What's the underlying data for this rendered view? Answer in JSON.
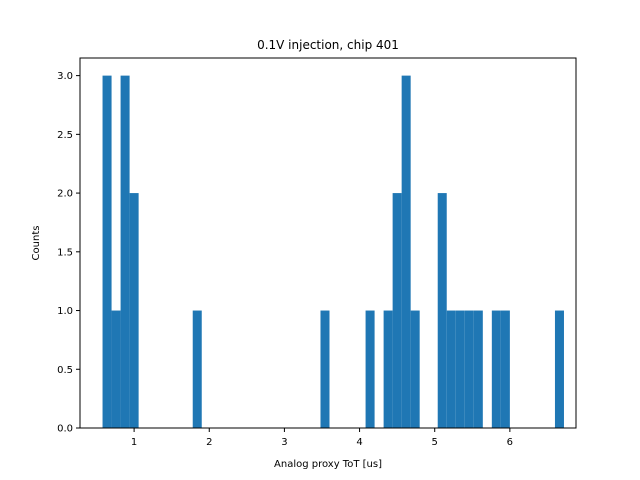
{
  "chart_data": {
    "type": "bar",
    "title": "0.1V injection, chip 401",
    "xlabel": "Analog proxy ToT [us]",
    "ylabel": "Counts",
    "xlim": [
      0.28,
      6.88
    ],
    "ylim": [
      0,
      3.15
    ],
    "xticks": [
      1,
      2,
      3,
      4,
      5,
      6
    ],
    "yticks": [
      0.0,
      0.5,
      1.0,
      1.5,
      2.0,
      2.5,
      3.0
    ],
    "xtick_labels": [
      "1",
      "2",
      "3",
      "4",
      "5",
      "6"
    ],
    "ytick_labels": [
      "0.0",
      "0.5",
      "1.0",
      "1.5",
      "2.0",
      "2.5",
      "3.0"
    ],
    "bar_color": "#1f77b4",
    "grid": false,
    "bins": [
      {
        "x0": 0.58,
        "x1": 0.7,
        "count": 3
      },
      {
        "x0": 0.7,
        "x1": 0.82,
        "count": 1
      },
      {
        "x0": 0.82,
        "x1": 0.94,
        "count": 3
      },
      {
        "x0": 0.94,
        "x1": 1.06,
        "count": 2
      },
      {
        "x0": 1.78,
        "x1": 1.9,
        "count": 1
      },
      {
        "x0": 3.48,
        "x1": 3.6,
        "count": 1
      },
      {
        "x0": 4.08,
        "x1": 4.2,
        "count": 1
      },
      {
        "x0": 4.32,
        "x1": 4.44,
        "count": 1
      },
      {
        "x0": 4.44,
        "x1": 4.56,
        "count": 2
      },
      {
        "x0": 4.56,
        "x1": 4.68,
        "count": 3
      },
      {
        "x0": 4.68,
        "x1": 4.8,
        "count": 1
      },
      {
        "x0": 5.04,
        "x1": 5.16,
        "count": 2
      },
      {
        "x0": 5.16,
        "x1": 5.28,
        "count": 1
      },
      {
        "x0": 5.28,
        "x1": 5.4,
        "count": 1
      },
      {
        "x0": 5.4,
        "x1": 5.52,
        "count": 1
      },
      {
        "x0": 5.52,
        "x1": 5.64,
        "count": 1
      },
      {
        "x0": 5.76,
        "x1": 5.88,
        "count": 1
      },
      {
        "x0": 5.88,
        "x1": 6.0,
        "count": 1
      },
      {
        "x0": 6.6,
        "x1": 6.72,
        "count": 1
      }
    ]
  }
}
